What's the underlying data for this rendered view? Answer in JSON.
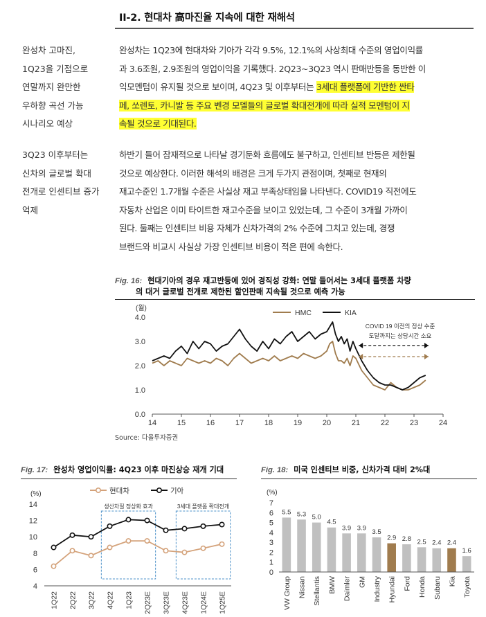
{
  "section": {
    "title": "II-2. 현대차 高마진율 지속에 대한 재해석"
  },
  "block1": {
    "side_lines": [
      "완성차 고마진,",
      "1Q23을 기점으로",
      "연말까지 완만한",
      "우하향 곡선 가능",
      "시나리오 예상"
    ],
    "para_lines": [
      {
        "pre": "완성차는 1Q23에 현대차와 기아가 각각 9.5%, 12.1%의 사상최대 수준의 영업이익률",
        "hl": ""
      },
      {
        "pre": "과 3.6조원, 2.9조원의 영업이익을 기록했다. 2Q23~3Q23 역시 판매반등을 동반한 이",
        "hl": ""
      },
      {
        "pre": "익모멘텀이 유지될 것으로 보이며, 4Q23 및 이후부터는 ",
        "hl": "3세대 플랫폼에 기반한 싼타"
      },
      {
        "pre": "",
        "hl": "페, 쏘렌토, 카니발 등 주요 볜경 모델들의 글로벌 확대전개에 따라 실적 모멘텀이 지"
      },
      {
        "pre": "",
        "hl": "속될 것으로 기대된다."
      }
    ]
  },
  "block2": {
    "side_lines": [
      "3Q23 이후부터는",
      "신차의 글로벌 확대",
      "전개로 인센티브 증가",
      "억제"
    ],
    "para_lines": [
      "하반기 들어 잠재적으로 나타날 경기둔화 흐름에도 불구하고, 인센티브 반등은 제한될",
      "것으로 예상한다. 이러한 해석의 배경은 크게 두가지 관점이며, 첫째로 현재의",
      "재고수준인 1.7개월 수준은 사실상 재고 부족상태임을 나타낸다. COVID19 직전에도",
      "자동차 산업은 이미 타이트한 재고수준을 보이고 있었는데, 그 수준이 3개월 가까이",
      "된다. 둘째는 인센티브 비용 자체가 신차가격의 2% 수준에 그치고 있는데, 경쟁",
      "브랜드와 비교시 사실상 가장 인센티브 비용이 적은 편에 속한다."
    ]
  },
  "fig16": {
    "num": "Fig. 16:",
    "caption_line1": "현대기아의 경우 재고반등에 있어 경직성 강화: 연말 들어서는 3세대 플랫폼 차량",
    "caption_line2": "의 대거 글로벌 전개로 제한된 할인판매 지속될 것으로 예측 가능",
    "source": "Source: 다올투자증권"
  },
  "fig17": {
    "num": "Fig. 17:",
    "caption": "완성차 영업이익률: 4Q23 이후 마진상승 재개 기대",
    "box1_label": "생산차질 정상화 효과",
    "box2_label": "3세대 플랫폼 확대전개"
  },
  "fig18": {
    "num": "Fig. 18:",
    "caption": "미국 인센티브 비중, 신차가격 대비 2%대"
  },
  "chart_data": [
    {
      "type": "line",
      "ylabel": "(월)",
      "ylim": [
        0,
        4
      ],
      "yticks": [
        "0.0",
        "1.0",
        "2.0",
        "3.0",
        "4.0"
      ],
      "xlim": [
        14,
        24
      ],
      "xticks": [
        "14",
        "15",
        "16",
        "17",
        "18",
        "19",
        "20",
        "21",
        "22",
        "23",
        "24"
      ],
      "annotation": [
        "COVID 19 이전의 정상 수준",
        "도달까지는 상당시간 소요"
      ],
      "series": [
        {
          "name": "HMC",
          "color": "#a07c4e",
          "x": [
            14.0,
            14.2,
            14.4,
            14.6,
            14.8,
            15.0,
            15.2,
            15.4,
            15.6,
            15.8,
            16.0,
            16.2,
            16.4,
            16.6,
            16.8,
            17.0,
            17.2,
            17.4,
            17.6,
            17.8,
            18.0,
            18.2,
            18.4,
            18.6,
            18.8,
            19.0,
            19.2,
            19.4,
            19.6,
            19.8,
            20.0,
            20.1,
            20.2,
            20.3,
            20.4,
            20.5,
            20.6,
            20.7,
            20.8,
            20.9,
            21.0,
            21.2,
            21.4,
            21.6,
            21.8,
            22.0,
            22.2,
            22.4,
            22.6,
            22.8,
            23.0,
            23.2,
            23.4
          ],
          "y": [
            2.1,
            2.2,
            2.0,
            2.2,
            2.1,
            2.0,
            2.3,
            2.2,
            2.1,
            2.2,
            2.1,
            2.3,
            2.2,
            2.0,
            2.3,
            2.5,
            2.3,
            2.1,
            2.2,
            2.3,
            2.2,
            2.4,
            2.2,
            2.3,
            2.4,
            2.3,
            2.5,
            2.4,
            2.3,
            2.4,
            2.6,
            2.9,
            3.0,
            2.5,
            2.2,
            2.2,
            2.1,
            2.3,
            2.0,
            2.4,
            2.3,
            1.8,
            1.5,
            1.2,
            1.1,
            1.0,
            1.3,
            1.1,
            1.0,
            1.0,
            1.1,
            1.2,
            1.4
          ]
        },
        {
          "name": "KIA",
          "color": "#111111",
          "x": [
            14.0,
            14.2,
            14.4,
            14.6,
            14.8,
            15.0,
            15.2,
            15.4,
            15.6,
            15.8,
            16.0,
            16.2,
            16.4,
            16.6,
            16.8,
            17.0,
            17.2,
            17.4,
            17.6,
            17.8,
            18.0,
            18.2,
            18.4,
            18.6,
            18.8,
            19.0,
            19.2,
            19.4,
            19.6,
            19.8,
            20.0,
            20.1,
            20.2,
            20.3,
            20.4,
            20.5,
            20.6,
            20.7,
            20.8,
            20.9,
            21.0,
            21.2,
            21.4,
            21.6,
            21.8,
            22.0,
            22.2,
            22.4,
            22.6,
            22.8,
            23.0,
            23.2,
            23.4
          ],
          "y": [
            2.2,
            2.3,
            2.4,
            2.3,
            2.6,
            2.8,
            2.5,
            3.0,
            2.7,
            3.0,
            2.9,
            2.6,
            2.8,
            2.9,
            3.2,
            3.5,
            3.1,
            2.8,
            2.6,
            3.0,
            2.7,
            3.1,
            2.9,
            3.2,
            3.4,
            3.0,
            3.2,
            3.4,
            3.1,
            3.3,
            3.4,
            3.6,
            3.8,
            3.3,
            3.0,
            3.2,
            2.9,
            3.1,
            2.6,
            3.0,
            2.7,
            2.2,
            1.8,
            1.5,
            1.3,
            1.2,
            1.2,
            1.1,
            1.0,
            1.1,
            1.3,
            1.5,
            1.6
          ]
        }
      ]
    },
    {
      "type": "line",
      "ylabel": "(%)",
      "ylim": [
        4,
        14
      ],
      "yticks": [
        "4",
        "6",
        "8",
        "10",
        "12",
        "14"
      ],
      "categories": [
        "1Q22",
        "2Q22",
        "3Q22",
        "4Q22",
        "1Q23",
        "2Q23E",
        "3Q23E",
        "4Q23E",
        "1Q24E",
        "1Q25E"
      ],
      "series": [
        {
          "name": "현대차",
          "color": "#d4a27a",
          "values": [
            6.4,
            8.3,
            7.7,
            8.7,
            9.5,
            9.5,
            8.3,
            8.1,
            8.6,
            9.1
          ]
        },
        {
          "name": "기아",
          "color": "#111111",
          "values": [
            8.7,
            10.2,
            10.0,
            11.3,
            12.1,
            12.0,
            10.8,
            11.0,
            11.3,
            11.5
          ]
        }
      ]
    },
    {
      "type": "bar",
      "ylabel": "(%)",
      "ylim": [
        0,
        7
      ],
      "yticks": [
        "0",
        "1",
        "2",
        "3",
        "4",
        "5",
        "6",
        "7"
      ],
      "categories": [
        "VW Group",
        "Nissan",
        "Stellantis",
        "BMW",
        "Daimler",
        "GM",
        "Industry",
        "Hyundai",
        "Ford",
        "Honda",
        "Subaru",
        "Kia",
        "Toyota"
      ],
      "values": [
        5.5,
        5.3,
        5.0,
        4.5,
        3.9,
        3.9,
        3.5,
        2.9,
        2.8,
        2.5,
        2.4,
        2.4,
        1.6
      ],
      "value_labels": [
        "5.5",
        "5.3",
        "5.0",
        "4.5",
        "3.9",
        "3.9",
        "3.5",
        "2.9",
        "2.8",
        "2.5",
        "2.4",
        "2.4",
        "1.6"
      ],
      "colors": {
        "default": "#c0c0c0",
        "highlight": "#a07c4e"
      },
      "highlight": [
        "Hyundai",
        "Kia"
      ]
    }
  ]
}
